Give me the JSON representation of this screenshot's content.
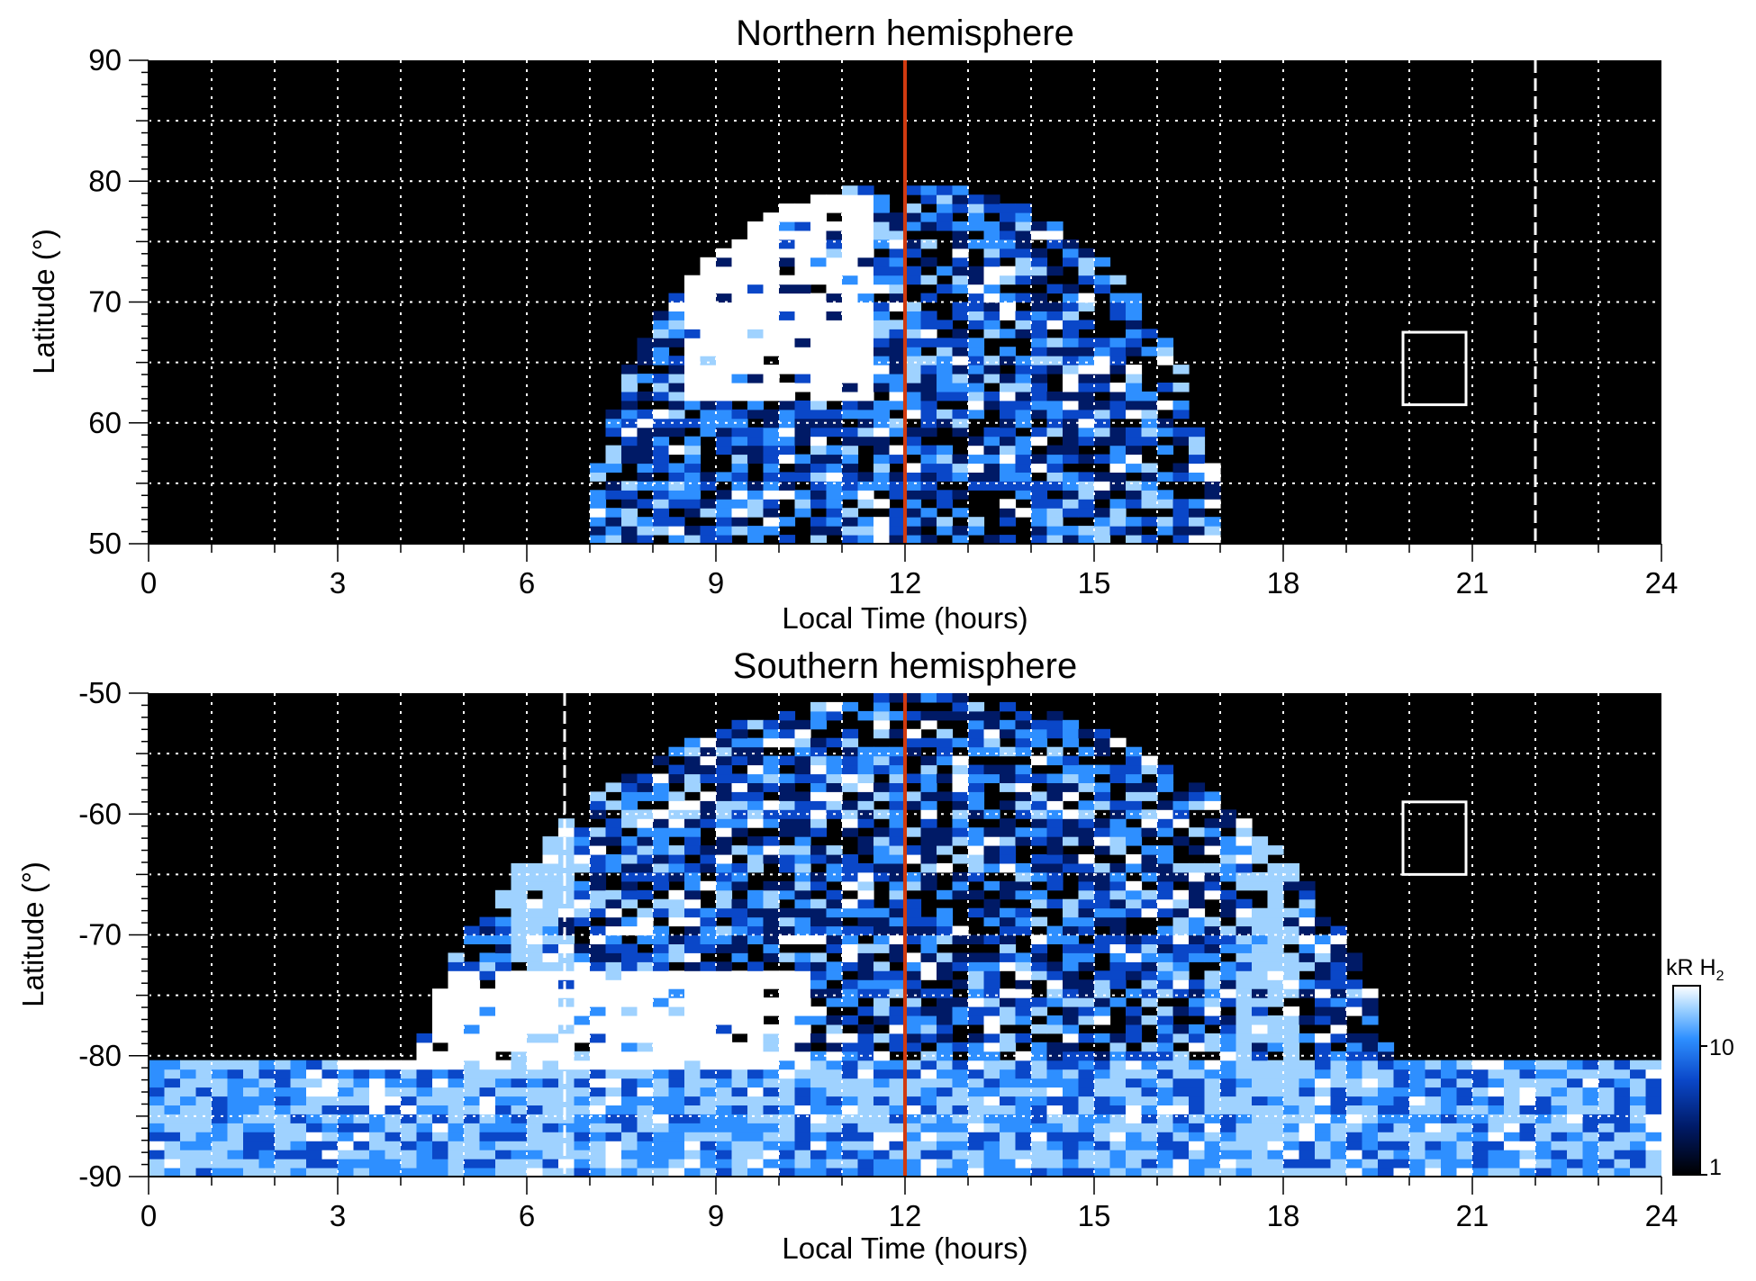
{
  "chart_data": [
    {
      "type": "heatmap",
      "title": "Northern hemisphere",
      "xlabel": "Local Time (hours)",
      "ylabel": "Latitude (°)",
      "xlim": [
        0,
        24
      ],
      "ylim": [
        50,
        90
      ],
      "xticks": [
        "0",
        "3",
        "6",
        "9",
        "12",
        "15",
        "18",
        "21",
        "24"
      ],
      "yticks": [
        "50",
        "60",
        "70",
        "80",
        "90"
      ],
      "grid": true,
      "colormap": "black-blue-white",
      "auroral_region": {
        "lt_range": [
          7,
          17
        ],
        "lat_min": 50,
        "lat_max": 80
      },
      "bright_patch": {
        "lt_range": [
          8.5,
          11.5
        ],
        "lat_range": [
          62,
          79
        ]
      },
      "markers": {
        "noon_line_lt": 12,
        "dashed_line_lt": 22,
        "box": {
          "lt_range": [
            19.9,
            20.9
          ],
          "lat_range": [
            61.5,
            67.5
          ]
        }
      }
    },
    {
      "type": "heatmap",
      "title": "Southern hemisphere",
      "xlabel": "Local Time (hours)",
      "ylabel": "Latitude (°)",
      "xlim": [
        0,
        24
      ],
      "ylim": [
        -90,
        -50
      ],
      "xticks": [
        "0",
        "3",
        "6",
        "9",
        "12",
        "15",
        "18",
        "21",
        "24"
      ],
      "yticks": [
        "-50",
        "-60",
        "-70",
        "-80",
        "-90"
      ],
      "grid": true,
      "colormap": "black-blue-white",
      "auroral_region": {
        "lt_range": [
          4,
          20
        ],
        "lat_min": -90,
        "lat_max": -50
      },
      "bright_patch": {
        "lt_range": [
          3.2,
          10.5
        ],
        "lat_range": [
          -81,
          -73
        ]
      },
      "markers": {
        "noon_line_lt": 12,
        "dashed_line_lt": 6.6,
        "box": {
          "lt_range": [
            19.9,
            20.9
          ],
          "lat_range": [
            -65,
            -59
          ]
        }
      }
    }
  ],
  "colorbar": {
    "label": "kR H",
    "label_sub": "2",
    "scale": "log",
    "range": [
      1,
      20
    ],
    "ticks": [
      "1",
      "10"
    ]
  },
  "colors": {
    "background": "#000000",
    "noon_line": "#d03a10",
    "grid": "#ffffff",
    "colormap_stops": [
      "#000000",
      "#001a66",
      "#0a47c8",
      "#2e8fff",
      "#9fd2ff",
      "#ffffff"
    ]
  }
}
